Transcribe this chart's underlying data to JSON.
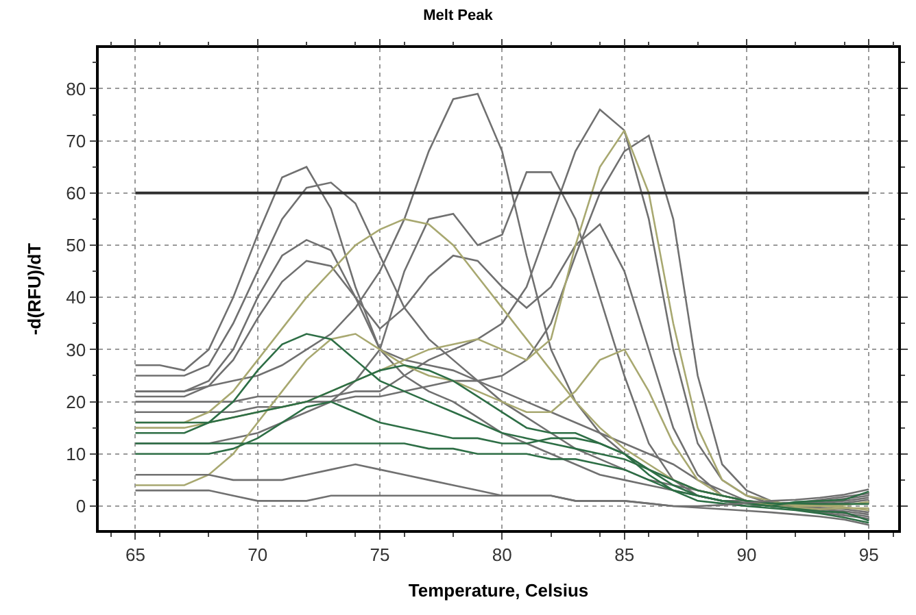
{
  "chart_data": {
    "type": "line",
    "title": "Melt Peak",
    "xlabel": "Temperature, Celsius",
    "ylabel": "-d(RFU)/dT",
    "x": [
      65,
      66,
      67,
      68,
      69,
      70,
      71,
      72,
      73,
      74,
      75,
      76,
      77,
      78,
      79,
      80,
      81,
      82,
      83,
      84,
      85,
      86,
      87,
      88,
      89,
      90,
      91,
      92,
      93,
      94,
      95
    ],
    "series": [
      {
        "color": "#707070",
        "values": [
          22,
          22,
          22,
          23,
          24,
          25,
          27,
          30,
          33,
          38,
          45,
          55,
          68,
          78,
          79,
          68,
          48,
          30,
          20,
          14,
          10,
          7,
          5,
          3,
          2,
          1,
          0.5,
          -0.6,
          -1.2,
          -1.8,
          -2.4
        ]
      },
      {
        "color": "#707070",
        "values": [
          27,
          27,
          26,
          30,
          40,
          52,
          63,
          65,
          57,
          42,
          30,
          25,
          22,
          20,
          17,
          14,
          12,
          10,
          8,
          6,
          5,
          4,
          3,
          2,
          1,
          1,
          0.6,
          0.6,
          1.2,
          1.8,
          2.4
        ]
      },
      {
        "color": "#707070",
        "values": [
          25,
          25,
          25,
          27,
          35,
          45,
          55,
          61,
          62,
          58,
          48,
          38,
          32,
          28,
          24,
          20,
          17,
          14,
          11,
          9,
          7,
          5,
          4,
          3,
          2,
          1,
          0,
          -0.4,
          -0.9,
          -1.4,
          -2.0
        ]
      },
      {
        "color": "#707070",
        "values": [
          20,
          20,
          20,
          20,
          20,
          21,
          21,
          21,
          21,
          22,
          22,
          25,
          28,
          30,
          32,
          35,
          42,
          55,
          68,
          76,
          72,
          55,
          30,
          12,
          5,
          2,
          0.5,
          0.4,
          0.9,
          1.4,
          2.0
        ]
      },
      {
        "color": "#707070",
        "values": [
          18,
          18,
          18,
          18,
          18,
          19,
          19,
          20,
          20,
          21,
          21,
          22,
          23,
          24,
          24,
          25,
          28,
          35,
          48,
          60,
          68,
          71,
          55,
          25,
          8,
          3,
          1,
          -0.2,
          -0.6,
          -1.0,
          -1.6
        ]
      },
      {
        "color": "#707070",
        "values": [
          12,
          12,
          12,
          12,
          13,
          14,
          16,
          18,
          20,
          24,
          30,
          45,
          55,
          56,
          50,
          52,
          64,
          64,
          55,
          40,
          25,
          12,
          5,
          2,
          1,
          0,
          0.2,
          0.2,
          0.6,
          1.0,
          1.6
        ]
      },
      {
        "color": "#707070",
        "values": [
          22,
          22,
          22,
          24,
          30,
          40,
          48,
          51,
          49,
          40,
          30,
          28,
          27,
          26,
          24,
          22,
          20,
          18,
          16,
          14,
          12,
          10,
          8,
          5,
          3,
          1,
          0,
          -0.1,
          -0.3,
          -0.6,
          -1.2
        ]
      },
      {
        "color": "#707070",
        "values": [
          21,
          21,
          21,
          23,
          28,
          36,
          43,
          47,
          46,
          40,
          34,
          38,
          44,
          48,
          47,
          42,
          38,
          42,
          50,
          54,
          45,
          30,
          15,
          6,
          2,
          1,
          0.3,
          0.1,
          0.3,
          0.6,
          1.2
        ]
      },
      {
        "color": "#a8a870",
        "values": [
          15,
          15,
          15,
          16,
          17,
          18,
          19,
          20,
          22,
          24,
          26,
          28,
          30,
          31,
          32,
          30,
          28,
          32,
          50,
          65,
          72,
          60,
          35,
          15,
          5,
          2,
          1,
          0,
          0,
          -0.2,
          -0.8
        ]
      },
      {
        "color": "#a8a870",
        "values": [
          16,
          16,
          16,
          18,
          22,
          28,
          34,
          40,
          45,
          50,
          53,
          55,
          54,
          50,
          44,
          38,
          32,
          26,
          20,
          15,
          11,
          8,
          5,
          3,
          2,
          1,
          0.2,
          0.3,
          0.1,
          0.2,
          0.8
        ]
      },
      {
        "color": "#a8a870",
        "values": [
          4,
          4,
          4,
          6,
          10,
          16,
          22,
          28,
          32,
          33,
          30,
          27,
          25,
          24,
          22,
          20,
          18,
          18,
          22,
          28,
          30,
          22,
          12,
          5,
          2,
          1,
          0,
          -0.3,
          -0.6,
          -0.4,
          -0.4
        ]
      },
      {
        "color": "#2d6e45",
        "values": [
          14,
          14,
          14,
          16,
          20,
          26,
          31,
          33,
          32,
          28,
          24,
          22,
          20,
          18,
          16,
          14,
          13,
          12,
          11,
          10,
          9,
          7,
          5,
          3,
          2,
          1,
          0.5,
          0.5,
          0.4,
          0.4,
          0.4
        ]
      },
      {
        "color": "#2d6e45",
        "values": [
          16,
          16,
          16,
          16,
          17,
          18,
          19,
          20,
          22,
          24,
          26,
          27,
          26,
          24,
          21,
          18,
          15,
          14,
          14,
          12,
          10,
          7,
          4,
          2,
          1,
          0.5,
          0,
          -0.5,
          -1.0,
          -1.2,
          -2.8
        ]
      },
      {
        "color": "#2d6e45",
        "values": [
          12,
          12,
          12,
          12,
          12,
          12,
          12,
          12,
          12,
          12,
          12,
          12,
          11,
          11,
          10,
          10,
          10,
          9,
          9,
          8,
          7,
          5,
          3,
          2,
          1,
          0.5,
          0,
          0.8,
          1.0,
          1.2,
          2.8
        ]
      },
      {
        "color": "#2d6e45",
        "values": [
          10,
          10,
          10,
          10,
          11,
          13,
          16,
          19,
          20,
          18,
          16,
          15,
          14,
          13,
          13,
          12,
          12,
          13,
          13,
          12,
          10,
          6,
          3,
          1,
          0.5,
          0,
          -0.4,
          -0.8,
          -1.4,
          -2.2,
          -3.2
        ]
      },
      {
        "color": "#707070",
        "values": [
          6,
          6,
          6,
          6,
          5,
          5,
          5,
          6,
          7,
          8,
          7,
          6,
          5,
          4,
          3,
          2,
          2,
          2,
          1,
          1,
          1,
          0.5,
          0,
          0,
          0.2,
          0.6,
          1.0,
          1.2,
          1.6,
          2.2,
          3.2
        ]
      },
      {
        "color": "#707070",
        "values": [
          3,
          3,
          3,
          3,
          2,
          1,
          1,
          1,
          2,
          2,
          2,
          2,
          2,
          2,
          2,
          2,
          2,
          2,
          1,
          1,
          1,
          0.5,
          0,
          -0.3,
          -0.6,
          -0.9,
          -1.2,
          -1.6,
          -2.0,
          -2.6,
          -3.6
        ]
      }
    ],
    "xlim": [
      63.5,
      96.2
    ],
    "ylim": [
      -4.6,
      87.8
    ],
    "xticks": [
      65,
      70,
      75,
      80,
      85,
      90,
      95
    ],
    "yticks": [
      0,
      10,
      20,
      30,
      40,
      50,
      60,
      70,
      80
    ],
    "ref_lines": [
      {
        "axis": "y",
        "value": 60,
        "color": "#303030"
      }
    ],
    "grid": true
  }
}
